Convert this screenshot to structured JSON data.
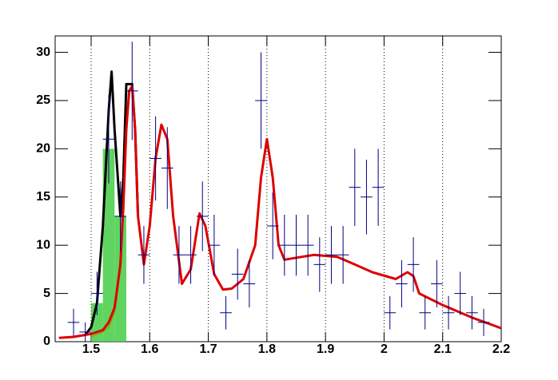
{
  "chart_data": {
    "type": "scatter",
    "xlim": [
      1.4386,
      2.2
    ],
    "ylim": [
      0,
      31.7
    ],
    "xticks": [
      1.5,
      1.6,
      1.7,
      1.8,
      1.9,
      2,
      2.1,
      2.2
    ],
    "yticks": [
      0,
      5,
      10,
      15,
      20,
      25,
      30
    ],
    "grid": true,
    "points": {
      "color": "#000080",
      "bin_width": 0.02,
      "x": [
        1.47,
        1.49,
        1.51,
        1.53,
        1.55,
        1.57,
        1.59,
        1.61,
        1.63,
        1.65,
        1.67,
        1.69,
        1.71,
        1.73,
        1.75,
        1.77,
        1.79,
        1.81,
        1.83,
        1.85,
        1.87,
        1.89,
        1.91,
        1.93,
        1.95,
        1.97,
        1.99,
        2.01,
        2.03,
        2.05,
        2.07,
        2.09,
        2.11,
        2.13,
        2.15,
        2.17
      ],
      "values": [
        2,
        1,
        5,
        21,
        13,
        26,
        9,
        19,
        18,
        9,
        9,
        13,
        10,
        3,
        7,
        6,
        25,
        12,
        10,
        10,
        10,
        8,
        9,
        9,
        16,
        15,
        16,
        3,
        6,
        8,
        3,
        6,
        3,
        5,
        3,
        2
      ],
      "errors": [
        1.41,
        1,
        2.24,
        4.58,
        3.61,
        5.1,
        3,
        4.36,
        4.24,
        3,
        3,
        3.61,
        3.16,
        1.73,
        2.65,
        2.45,
        5,
        3.46,
        3.16,
        3.16,
        3.16,
        2.83,
        3,
        3,
        4,
        3.87,
        4,
        1.73,
        2.45,
        2.83,
        1.73,
        2.45,
        1.73,
        2.24,
        1.73,
        1.41
      ]
    },
    "histogram": {
      "color": "#44cc44",
      "bins": [
        1.5,
        1.52,
        1.54,
        1.56
      ],
      "values": [
        4,
        20,
        13
      ]
    },
    "curves": [
      {
        "color": "#000000",
        "x": [
          1.49,
          1.5,
          1.51,
          1.52,
          1.53,
          1.535,
          1.54,
          1.55,
          1.555,
          1.56,
          1.565,
          1.57,
          1.575,
          1.58
        ],
        "values": [
          0.7,
          1.5,
          4,
          12,
          24,
          28,
          22,
          13,
          17,
          26.7,
          26.7,
          26.7,
          22,
          13
        ]
      },
      {
        "color": "#999900",
        "x": [
          1.5,
          1.52,
          1.53,
          1.54,
          1.545,
          1.55,
          1.555
        ],
        "values": [
          0.5,
          1,
          1.5,
          3,
          5,
          9,
          13
        ]
      },
      {
        "color": "#dd0000",
        "x": [
          1.445,
          1.47,
          1.49,
          1.5,
          1.52,
          1.53,
          1.54,
          1.55,
          1.555,
          1.56,
          1.565,
          1.57,
          1.575,
          1.58,
          1.59,
          1.6,
          1.61,
          1.62,
          1.63,
          1.64,
          1.655,
          1.67,
          1.685,
          1.695,
          1.71,
          1.725,
          1.74,
          1.76,
          1.78,
          1.79,
          1.8,
          1.81,
          1.82,
          1.83,
          1.86,
          1.88,
          1.92,
          1.95,
          1.98,
          2.02,
          2.04,
          2.05,
          2.06,
          2.1,
          2.15,
          2.2
        ],
        "values": [
          0.4,
          0.5,
          0.7,
          0.8,
          1.2,
          2,
          3.5,
          8,
          14,
          22,
          26,
          26.5,
          22,
          13,
          8,
          12,
          19,
          22.5,
          21,
          13,
          6,
          7.5,
          13.3,
          12,
          7,
          5.4,
          5.5,
          6.5,
          10,
          17,
          21,
          17,
          10,
          8.5,
          8.8,
          9,
          8.8,
          8,
          7.2,
          6.5,
          7.2,
          6.8,
          5,
          3.8,
          2.5,
          1.4
        ]
      }
    ]
  }
}
